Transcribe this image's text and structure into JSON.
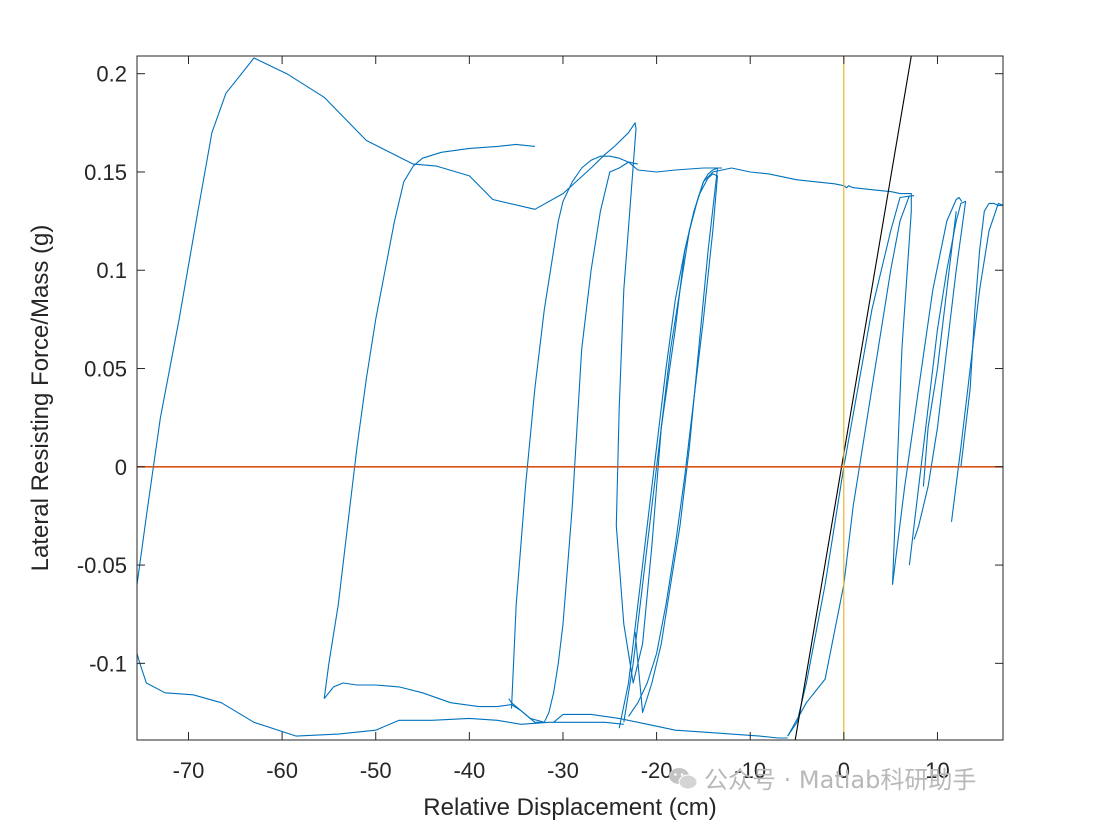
{
  "chart_data": {
    "type": "line",
    "title": "",
    "xlabel": "Relative Displacement (cm)",
    "ylabel": "Lateral Resisting Force/Mass (g)",
    "xlim": [
      -75.5,
      17
    ],
    "ylim": [
      -0.139,
      0.209
    ],
    "xticks": [
      -70,
      -60,
      -50,
      -40,
      -30,
      -20,
      -10,
      0,
      10
    ],
    "yticks": [
      -0.1,
      -0.05,
      0,
      0.05,
      0.1,
      0.15,
      0.2
    ],
    "xtick_labels": [
      "-70",
      "-60",
      "-50",
      "-40",
      "-30",
      "-20",
      "-10",
      "0",
      "10"
    ],
    "ytick_labels": [
      "-0.1",
      "-0.05",
      "0",
      "0.05",
      "0.1",
      "0.15",
      "0.2"
    ],
    "grid": false,
    "colors": {
      "hysteresis": "#0072BD",
      "zero_line": "#D95319",
      "vertical_line": "#EDB120",
      "stiffness_line": "#000000"
    },
    "series": [
      {
        "role": "hysteresis",
        "x": [
          -75.5,
          -74.5,
          -73,
          -71,
          -69,
          -67.5,
          -66,
          -63,
          -59.5,
          -55.5,
          -51,
          -46,
          -43.5,
          -40,
          -37.5,
          -33,
          -30,
          -27,
          -25.5,
          -24.5,
          -23,
          -22.3,
          -22.2,
          -23.5,
          -24,
          -24.3,
          -23.5,
          -22.5,
          -21.5,
          -20.5,
          -19.5,
          -18,
          -17,
          -16,
          -15,
          -14,
          -13,
          -12,
          -10,
          -8,
          -5,
          -3,
          -1,
          0,
          0.3,
          0.5,
          1,
          3,
          5,
          6,
          7.2,
          7.2,
          6.2,
          5.2
        ],
        "y": [
          -0.06,
          -0.025,
          0.025,
          0.075,
          0.13,
          0.17,
          0.19,
          0.208,
          0.2,
          0.188,
          0.166,
          0.154,
          0.153,
          0.148,
          0.136,
          0.131,
          0.139,
          0.152,
          0.159,
          0.163,
          0.17,
          0.175,
          0.172,
          0.09,
          0.03,
          -0.03,
          -0.08,
          -0.11,
          -0.09,
          -0.04,
          0.02,
          0.07,
          0.11,
          0.13,
          0.145,
          0.15,
          0.151,
          0.152,
          0.15,
          0.149,
          0.146,
          0.145,
          0.144,
          0.143,
          0.142,
          0.143,
          0.142,
          0.141,
          0.14,
          0.139,
          0.139,
          0.13,
          0.06,
          -0.06
        ]
      },
      {
        "role": "hysteresis",
        "x": [
          -55.5,
          -55,
          -54,
          -53,
          -52,
          -51,
          -50,
          -49,
          -48,
          -47,
          -46,
          -45,
          -43,
          -40,
          -37,
          -35,
          -33
        ],
        "y": [
          -0.118,
          -0.1,
          -0.07,
          -0.03,
          0.01,
          0.045,
          0.075,
          0.1,
          0.125,
          0.145,
          0.153,
          0.157,
          0.16,
          0.162,
          0.163,
          0.164,
          0.163
        ]
      },
      {
        "role": "hysteresis",
        "x": [
          -75.5,
          -75.2,
          -74.5,
          -72.5,
          -69.5,
          -66.5,
          -63,
          -58.5,
          -54,
          -50,
          -47.5,
          -44,
          -40,
          -37,
          -34.5,
          -31.5,
          -28.5,
          -25.5,
          -23.5
        ],
        "y": [
          -0.095,
          -0.1,
          -0.11,
          -0.115,
          -0.116,
          -0.12,
          -0.13,
          -0.137,
          -0.136,
          -0.134,
          -0.129,
          -0.129,
          -0.128,
          -0.129,
          -0.131,
          -0.13,
          -0.13,
          -0.13,
          -0.131
        ]
      },
      {
        "role": "hysteresis",
        "x": [
          -55.5,
          -54.5,
          -53.5,
          -52,
          -50,
          -47.5,
          -45,
          -42,
          -39,
          -37,
          -35.5,
          -34.5,
          -33.5,
          -32
        ],
        "y": [
          -0.118,
          -0.112,
          -0.11,
          -0.111,
          -0.111,
          -0.112,
          -0.115,
          -0.12,
          -0.122,
          -0.122,
          -0.121,
          -0.124,
          -0.128,
          -0.13
        ]
      },
      {
        "role": "hysteresis",
        "x": [
          -35.5,
          -35,
          -34,
          -33,
          -32,
          -31,
          -30.5,
          -30,
          -29,
          -28,
          -27,
          -26,
          -25,
          -24,
          -23,
          -22
        ],
        "y": [
          -0.123,
          -0.07,
          -0.01,
          0.04,
          0.08,
          0.11,
          0.125,
          0.135,
          0.145,
          0.152,
          0.156,
          0.158,
          0.158,
          0.157,
          0.155,
          0.154
        ]
      },
      {
        "role": "hysteresis",
        "x": [
          -35.8,
          -35.5,
          -34,
          -33,
          -32,
          -31.5,
          -31,
          -30.5,
          -30,
          -29.5,
          -29,
          -28.5,
          -28,
          -27,
          -26,
          -25,
          -24,
          -23,
          -22,
          -20,
          -18,
          -15,
          -13
        ],
        "y": [
          -0.118,
          -0.12,
          -0.126,
          -0.13,
          -0.13,
          -0.125,
          -0.115,
          -0.1,
          -0.08,
          -0.05,
          -0.02,
          0.02,
          0.06,
          0.1,
          0.13,
          0.15,
          0.152,
          0.155,
          0.151,
          0.15,
          0.151,
          0.152,
          0.152
        ]
      },
      {
        "role": "hysteresis",
        "x": [
          -31,
          -30,
          -27,
          -24,
          -22,
          -20,
          -18,
          -15,
          -12,
          -9,
          -7,
          -6
        ],
        "y": [
          -0.13,
          -0.126,
          -0.126,
          -0.128,
          -0.13,
          -0.132,
          -0.134,
          -0.135,
          -0.136,
          -0.137,
          -0.138,
          -0.138
        ]
      },
      {
        "role": "hysteresis",
        "x": [
          -24,
          -23,
          -22,
          -21,
          -20,
          -19,
          -18,
          -17,
          -16,
          -15,
          -14.5,
          -14,
          -13.5,
          -14.5,
          -15.5,
          -16.5,
          -17.5,
          -18.5,
          -19.5,
          -20.5,
          -21.5,
          -22.3
        ],
        "y": [
          -0.133,
          -0.11,
          -0.07,
          -0.03,
          0.01,
          0.05,
          0.085,
          0.11,
          0.13,
          0.145,
          0.149,
          0.151,
          0.152,
          0.11,
          0.06,
          0.01,
          -0.03,
          -0.06,
          -0.09,
          -0.11,
          -0.125,
          -0.084
        ]
      },
      {
        "role": "hysteresis",
        "x": [
          -23.5,
          -22.5,
          -21.5,
          -20.5,
          -19.5,
          -18.5,
          -17.5,
          -16.5,
          -15.5,
          -14.5,
          -14,
          -13.5,
          -14,
          -15,
          -16,
          -17,
          -18,
          -19,
          -20,
          -21,
          -22,
          -23
        ],
        "y": [
          -0.13,
          -0.1,
          -0.06,
          -0.02,
          0.02,
          0.06,
          0.09,
          0.12,
          0.138,
          0.147,
          0.149,
          0.148,
          0.12,
          0.075,
          0.035,
          -0.005,
          -0.04,
          -0.07,
          -0.095,
          -0.11,
          -0.12,
          -0.127
        ]
      },
      {
        "role": "hysteresis",
        "x": [
          -6,
          -5,
          -4,
          -2,
          0,
          1.5,
          3,
          5,
          6,
          7.5
        ],
        "y": [
          -0.137,
          -0.13,
          -0.11,
          -0.06,
          0.0,
          0.04,
          0.08,
          0.12,
          0.137,
          0.138
        ]
      },
      {
        "role": "hysteresis",
        "x": [
          -6,
          -4,
          -2,
          0,
          1,
          2,
          3,
          4,
          5,
          6,
          7
        ],
        "y": [
          -0.137,
          -0.12,
          -0.108,
          -0.06,
          -0.02,
          0.01,
          0.04,
          0.07,
          0.1,
          0.125,
          0.138
        ]
      },
      {
        "role": "hysteresis",
        "x": [
          5.2,
          6.5,
          8,
          9.5,
          11,
          12,
          12.3,
          12.6
        ],
        "y": [
          -0.06,
          -0.01,
          0.04,
          0.09,
          0.125,
          0.136,
          0.137,
          0.135
        ]
      },
      {
        "role": "hysteresis",
        "x": [
          7,
          8,
          9,
          10,
          11,
          12,
          12.5,
          13,
          12,
          11,
          10,
          9,
          8,
          7.5
        ],
        "y": [
          -0.05,
          -0.01,
          0.03,
          0.07,
          0.1,
          0.125,
          0.134,
          0.135,
          0.1,
          0.06,
          0.02,
          -0.01,
          -0.03,
          -0.037
        ]
      },
      {
        "role": "hysteresis",
        "x": [
          11.5,
          12.5,
          13.5,
          14.5,
          15.5,
          16.5,
          17
        ],
        "y": [
          -0.028,
          0.01,
          0.05,
          0.09,
          0.12,
          0.134,
          0.133
        ]
      },
      {
        "role": "hysteresis",
        "x": [
          12.5,
          13.5,
          14,
          14.5,
          15,
          15.5,
          16,
          16.5,
          17
        ],
        "y": [
          0.0,
          0.04,
          0.08,
          0.11,
          0.13,
          0.134,
          0.134,
          0.133,
          0.133
        ]
      },
      {
        "role": "hysteresis",
        "x": [
          12,
          11,
          10,
          9,
          8.5
        ],
        "y": [
          0.13,
          0.09,
          0.05,
          0.02,
          -0.01
        ]
      },
      {
        "role": "zero_line",
        "x": [
          -75.5,
          17
        ],
        "y": [
          0,
          0
        ]
      },
      {
        "role": "vertical_line",
        "x": [
          0,
          0
        ],
        "y": [
          -0.139,
          0.209
        ]
      },
      {
        "role": "stiffness_line",
        "x": [
          -5.2,
          7.2
        ],
        "y": [
          -0.139,
          0.209
        ]
      }
    ]
  },
  "watermark": {
    "icon": "wechat-icon",
    "text": "公众号 · Matlab科研助手"
  }
}
